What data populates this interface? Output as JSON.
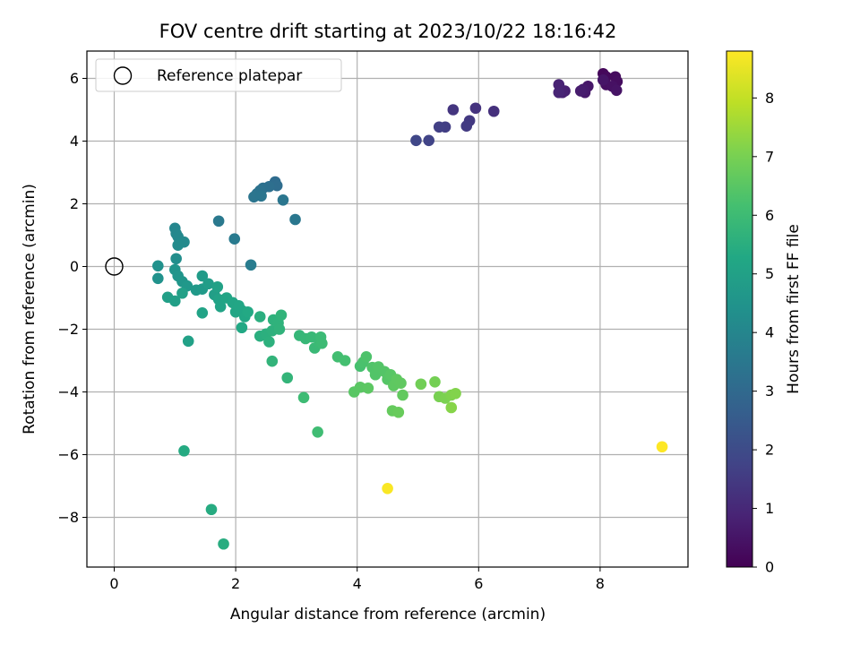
{
  "chart_data": {
    "type": "scatter",
    "title": "FOV centre drift starting at 2023/10/22 18:16:42",
    "xlabel": "Angular distance from reference (arcmin)",
    "ylabel": "Rotation from reference (arcmin)",
    "xlim": [
      -0.45,
      9.5
    ],
    "ylim": [
      -9.6,
      6.9
    ],
    "xticks": [
      0,
      2,
      4,
      6,
      8
    ],
    "yticks": [
      -8,
      -6,
      -4,
      -2,
      0,
      2,
      4,
      6
    ],
    "grid": true,
    "colormap": "viridis",
    "colorbar": {
      "label": "Hours from first FF file",
      "range": [
        0,
        8.8
      ],
      "ticks": [
        0,
        1,
        2,
        3,
        4,
        5,
        6,
        7,
        8
      ]
    },
    "legend": {
      "position": "upper-left",
      "entries": [
        {
          "label": "Reference platepar",
          "marker": "hollow-circle"
        }
      ]
    },
    "reference_point": {
      "x": 0,
      "y": 0
    },
    "points": [
      {
        "x": 8.05,
        "y": 6.15,
        "t": 0.15
      },
      {
        "x": 8.1,
        "y": 6.05,
        "t": 0.2
      },
      {
        "x": 8.25,
        "y": 6.05,
        "t": 0.25
      },
      {
        "x": 8.28,
        "y": 5.9,
        "t": 0.3
      },
      {
        "x": 8.1,
        "y": 5.8,
        "t": 0.35
      },
      {
        "x": 8.2,
        "y": 5.75,
        "t": 0.4
      },
      {
        "x": 8.27,
        "y": 5.62,
        "t": 0.45
      },
      {
        "x": 8.05,
        "y": 5.95,
        "t": 0.5
      },
      {
        "x": 7.8,
        "y": 5.75,
        "t": 0.55
      },
      {
        "x": 7.75,
        "y": 5.55,
        "t": 0.6
      },
      {
        "x": 7.72,
        "y": 5.65,
        "t": 0.65
      },
      {
        "x": 7.68,
        "y": 5.6,
        "t": 0.7
      },
      {
        "x": 7.42,
        "y": 5.6,
        "t": 0.75
      },
      {
        "x": 7.38,
        "y": 5.55,
        "t": 0.8
      },
      {
        "x": 7.32,
        "y": 5.8,
        "t": 0.85
      },
      {
        "x": 7.32,
        "y": 5.55,
        "t": 0.9
      },
      {
        "x": 6.25,
        "y": 4.95,
        "t": 1.2
      },
      {
        "x": 5.95,
        "y": 5.05,
        "t": 1.3
      },
      {
        "x": 5.58,
        "y": 5.0,
        "t": 1.35
      },
      {
        "x": 5.85,
        "y": 4.65,
        "t": 1.45
      },
      {
        "x": 5.8,
        "y": 4.48,
        "t": 1.5
      },
      {
        "x": 5.45,
        "y": 4.45,
        "t": 1.6
      },
      {
        "x": 5.35,
        "y": 4.45,
        "t": 1.65
      },
      {
        "x": 5.18,
        "y": 4.02,
        "t": 1.75
      },
      {
        "x": 4.97,
        "y": 4.02,
        "t": 1.85
      },
      {
        "x": 2.65,
        "y": 2.7,
        "t": 3.1
      },
      {
        "x": 2.68,
        "y": 2.58,
        "t": 3.15
      },
      {
        "x": 2.55,
        "y": 2.55,
        "t": 3.2
      },
      {
        "x": 2.45,
        "y": 2.5,
        "t": 3.25
      },
      {
        "x": 2.4,
        "y": 2.42,
        "t": 3.3
      },
      {
        "x": 2.35,
        "y": 2.32,
        "t": 3.35
      },
      {
        "x": 2.3,
        "y": 2.22,
        "t": 3.4
      },
      {
        "x": 2.42,
        "y": 2.25,
        "t": 3.42
      },
      {
        "x": 2.78,
        "y": 2.12,
        "t": 3.45
      },
      {
        "x": 2.98,
        "y": 1.5,
        "t": 3.5
      },
      {
        "x": 1.72,
        "y": 1.45,
        "t": 3.55
      },
      {
        "x": 1.98,
        "y": 0.88,
        "t": 3.6
      },
      {
        "x": 2.25,
        "y": 0.05,
        "t": 3.65
      },
      {
        "x": 1.0,
        "y": 1.22,
        "t": 4.0
      },
      {
        "x": 1.02,
        "y": 1.05,
        "t": 4.05
      },
      {
        "x": 1.05,
        "y": 0.95,
        "t": 4.1
      },
      {
        "x": 1.15,
        "y": 0.78,
        "t": 4.15
      },
      {
        "x": 1.05,
        "y": 0.68,
        "t": 4.2
      },
      {
        "x": 1.02,
        "y": 0.25,
        "t": 4.3
      },
      {
        "x": 0.72,
        "y": 0.02,
        "t": 4.4
      },
      {
        "x": 0.72,
        "y": -0.38,
        "t": 4.45
      },
      {
        "x": 1.0,
        "y": -0.1,
        "t": 4.5
      },
      {
        "x": 1.05,
        "y": -0.3,
        "t": 4.55
      },
      {
        "x": 1.12,
        "y": -0.48,
        "t": 4.6
      },
      {
        "x": 1.2,
        "y": -0.62,
        "t": 4.65
      },
      {
        "x": 1.35,
        "y": -0.75,
        "t": 4.7
      },
      {
        "x": 1.45,
        "y": -0.72,
        "t": 4.75
      },
      {
        "x": 1.45,
        "y": -0.3,
        "t": 4.8
      },
      {
        "x": 1.55,
        "y": -0.55,
        "t": 4.85
      },
      {
        "x": 1.65,
        "y": -0.9,
        "t": 4.9
      },
      {
        "x": 0.88,
        "y": -0.98,
        "t": 4.92
      },
      {
        "x": 1.0,
        "y": -1.1,
        "t": 4.95
      },
      {
        "x": 1.12,
        "y": -0.85,
        "t": 4.97
      },
      {
        "x": 1.22,
        "y": -2.38,
        "t": 5.0
      },
      {
        "x": 1.7,
        "y": -0.65,
        "t": 5.02
      },
      {
        "x": 1.72,
        "y": -1.05,
        "t": 5.05
      },
      {
        "x": 1.75,
        "y": -1.28,
        "t": 5.08
      },
      {
        "x": 1.45,
        "y": -1.48,
        "t": 5.1
      },
      {
        "x": 1.85,
        "y": -1.0,
        "t": 5.12
      },
      {
        "x": 1.95,
        "y": -1.15,
        "t": 5.15
      },
      {
        "x": 2.0,
        "y": -1.45,
        "t": 5.18
      },
      {
        "x": 2.05,
        "y": -1.25,
        "t": 5.2
      },
      {
        "x": 2.1,
        "y": -1.4,
        "t": 5.22
      },
      {
        "x": 2.15,
        "y": -1.6,
        "t": 5.25
      },
      {
        "x": 2.1,
        "y": -1.95,
        "t": 5.27
      },
      {
        "x": 2.2,
        "y": -1.45,
        "t": 5.3
      },
      {
        "x": 1.15,
        "y": -5.88,
        "t": 5.35
      },
      {
        "x": 1.6,
        "y": -7.75,
        "t": 5.4
      },
      {
        "x": 1.8,
        "y": -8.85,
        "t": 5.45
      },
      {
        "x": 2.4,
        "y": -1.6,
        "t": 5.5
      },
      {
        "x": 2.4,
        "y": -2.22,
        "t": 5.52
      },
      {
        "x": 2.5,
        "y": -2.15,
        "t": 5.55
      },
      {
        "x": 2.55,
        "y": -2.4,
        "t": 5.57
      },
      {
        "x": 2.6,
        "y": -2.05,
        "t": 5.6
      },
      {
        "x": 2.62,
        "y": -1.7,
        "t": 5.62
      },
      {
        "x": 2.7,
        "y": -1.8,
        "t": 5.65
      },
      {
        "x": 2.72,
        "y": -2.0,
        "t": 5.67
      },
      {
        "x": 2.75,
        "y": -1.55,
        "t": 5.7
      },
      {
        "x": 2.6,
        "y": -3.02,
        "t": 5.72
      },
      {
        "x": 2.85,
        "y": -3.55,
        "t": 5.75
      },
      {
        "x": 3.05,
        "y": -2.2,
        "t": 5.8
      },
      {
        "x": 3.15,
        "y": -2.3,
        "t": 5.85
      },
      {
        "x": 3.25,
        "y": -2.25,
        "t": 5.88
      },
      {
        "x": 3.3,
        "y": -2.6,
        "t": 5.9
      },
      {
        "x": 3.38,
        "y": -2.45,
        "t": 5.92
      },
      {
        "x": 3.4,
        "y": -2.25,
        "t": 5.95
      },
      {
        "x": 3.42,
        "y": -2.45,
        "t": 5.97
      },
      {
        "x": 3.12,
        "y": -4.18,
        "t": 6.0
      },
      {
        "x": 3.35,
        "y": -5.28,
        "t": 6.05
      },
      {
        "x": 3.68,
        "y": -2.88,
        "t": 6.1
      },
      {
        "x": 3.8,
        "y": -3.0,
        "t": 6.15
      },
      {
        "x": 4.05,
        "y": -3.18,
        "t": 6.2
      },
      {
        "x": 4.1,
        "y": -3.05,
        "t": 6.25
      },
      {
        "x": 4.15,
        "y": -2.88,
        "t": 6.3
      },
      {
        "x": 4.25,
        "y": -3.22,
        "t": 6.35
      },
      {
        "x": 4.3,
        "y": -3.45,
        "t": 6.38
      },
      {
        "x": 4.35,
        "y": -3.2,
        "t": 6.4
      },
      {
        "x": 4.45,
        "y": -3.35,
        "t": 6.42
      },
      {
        "x": 4.5,
        "y": -3.6,
        "t": 6.45
      },
      {
        "x": 4.55,
        "y": -3.45,
        "t": 6.48
      },
      {
        "x": 3.95,
        "y": -4.0,
        "t": 6.5
      },
      {
        "x": 4.05,
        "y": -3.85,
        "t": 6.52
      },
      {
        "x": 4.18,
        "y": -3.88,
        "t": 6.55
      },
      {
        "x": 4.6,
        "y": -3.8,
        "t": 6.58
      },
      {
        "x": 4.65,
        "y": -3.6,
        "t": 6.6
      },
      {
        "x": 4.72,
        "y": -3.72,
        "t": 6.62
      },
      {
        "x": 4.75,
        "y": -4.1,
        "t": 6.65
      },
      {
        "x": 4.58,
        "y": -4.6,
        "t": 6.7
      },
      {
        "x": 4.68,
        "y": -4.65,
        "t": 6.75
      },
      {
        "x": 5.05,
        "y": -3.75,
        "t": 6.9
      },
      {
        "x": 5.28,
        "y": -3.68,
        "t": 6.95
      },
      {
        "x": 5.35,
        "y": -4.15,
        "t": 7.0
      },
      {
        "x": 5.45,
        "y": -4.2,
        "t": 7.05
      },
      {
        "x": 5.55,
        "y": -4.1,
        "t": 7.1
      },
      {
        "x": 5.62,
        "y": -4.05,
        "t": 7.15
      },
      {
        "x": 5.55,
        "y": -4.5,
        "t": 7.2
      },
      {
        "x": 4.5,
        "y": -7.08,
        "t": 8.75
      },
      {
        "x": 9.02,
        "y": -5.75,
        "t": 8.8
      }
    ]
  }
}
